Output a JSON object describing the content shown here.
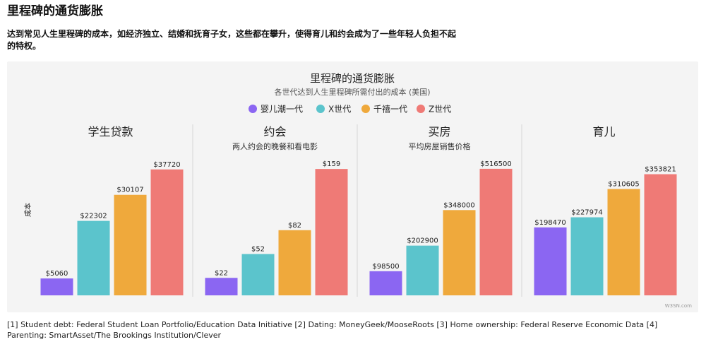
{
  "header": {
    "title": "里程碑的通货膨胀",
    "subtitle": "达到常见人生里程碑的成本，如经济独立、结婚和抚育子女，这些都在攀升，使得育儿和约会成为了一些年轻人负担不起的特权。"
  },
  "footer": {
    "sources": "[1] Student debt: Federal Student Loan Portfolio/Education Data Initiative [2] Dating: MoneyGeek/MooseRoots [3] Home ownership: Federal Reserve Economic Data [4] Parenting: SmartAsset/The Brookings Institution/Clever"
  },
  "colors": {
    "panel_bg": "#f4f4f4",
    "series": [
      "#8b66f2",
      "#5bc4cc",
      "#efa93c",
      "#ef7a76"
    ]
  },
  "chart_data": {
    "type": "bar",
    "title": "里程碑的通货膨胀",
    "subtitle": "各世代达到人生里程碑所需付出的成本 (美国)",
    "ylabel": "成本",
    "value_prefix": "$",
    "watermark": "W3SN.com",
    "legend_position": "top-center",
    "series_names": [
      "婴儿潮一代",
      "X世代",
      "千禧一代",
      "Z世代"
    ],
    "panels": [
      {
        "title": "学生贷款",
        "subtitle": "",
        "values": [
          5060,
          22302,
          30107,
          37720
        ],
        "ylim": [
          0,
          40000
        ]
      },
      {
        "title": "约会",
        "subtitle": "两人约会的晚餐和看电影",
        "values": [
          22,
          52,
          82,
          159
        ],
        "ylim": [
          0,
          168
        ]
      },
      {
        "title": "买房",
        "subtitle": "平均房屋销售价格",
        "values": [
          98500,
          202900,
          348000,
          516500
        ],
        "ylim": [
          0,
          545000
        ]
      },
      {
        "title": "育儿",
        "subtitle": "",
        "values": [
          198470,
          227974,
          310605,
          353821
        ],
        "ylim": [
          0,
          390000
        ]
      }
    ]
  }
}
